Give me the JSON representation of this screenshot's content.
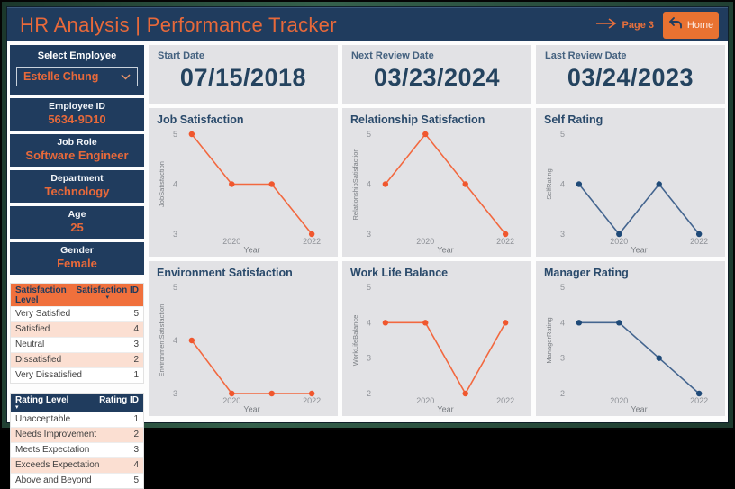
{
  "header": {
    "title": "HR Analysis | Performance Tracker",
    "page_label": "Page 3",
    "home_label": "Home"
  },
  "icons": {
    "page_arrow_icon": "→",
    "home_icon": "↶",
    "chevron_down_icon": "⌄",
    "sort_desc_icon": "▾"
  },
  "sidebar": {
    "select_employee": {
      "label": "Select Employee",
      "value": "Estelle Chung"
    },
    "info_cards": [
      {
        "label": "Employee ID",
        "value": "5634-9D10"
      },
      {
        "label": "Job Role",
        "value": "Software Engineer"
      },
      {
        "label": "Department",
        "value": "Technology"
      },
      {
        "label": "Age",
        "value": "25"
      },
      {
        "label": "Gender",
        "value": "Female"
      }
    ],
    "satisfaction_table": {
      "columns": [
        "Satisfaction Level",
        "Satisfaction ID"
      ],
      "rows": [
        [
          "Very Satisfied",
          "5"
        ],
        [
          "Satisfied",
          "4"
        ],
        [
          "Neutral",
          "3"
        ],
        [
          "Dissatisfied",
          "2"
        ],
        [
          "Very Dissatisfied",
          "1"
        ]
      ]
    },
    "rating_table": {
      "columns": [
        "Rating Level",
        "Rating ID"
      ],
      "rows": [
        [
          "Unacceptable",
          "1"
        ],
        [
          "Needs Improvement",
          "2"
        ],
        [
          "Meets Expectation",
          "3"
        ],
        [
          "Exceeds Expectation",
          "4"
        ],
        [
          "Above and Beyond",
          "5"
        ]
      ]
    }
  },
  "kpi_cards": [
    {
      "label": "Start Date",
      "value": "07/15/2018"
    },
    {
      "label": "Next Review Date",
      "value": "03/23/2024"
    },
    {
      "label": "Last Review Date",
      "value": "03/24/2023"
    }
  ],
  "chart_data": [
    {
      "type": "line",
      "title": "Job Satisfaction",
      "xlabel": "Year",
      "ylabel": "JobSatisfaction",
      "x": [
        2019,
        2020,
        2021,
        2022
      ],
      "values": [
        5,
        4,
        4,
        3
      ],
      "yticks": [
        5,
        4,
        3
      ],
      "xticks": [
        2020,
        2022
      ],
      "ylim": [
        3,
        5
      ],
      "line_color": "#F2683F",
      "dot_color": "#F0572E",
      "grid": false,
      "legend": false
    },
    {
      "type": "line",
      "title": "Relationship Satisfaction",
      "xlabel": "Year",
      "ylabel": "RelationshipSatisfaction",
      "x": [
        2019,
        2020,
        2021,
        2022
      ],
      "values": [
        4,
        5,
        4,
        3
      ],
      "yticks": [
        5,
        4,
        3
      ],
      "xticks": [
        2020,
        2022
      ],
      "ylim": [
        3,
        5
      ],
      "line_color": "#F2683F",
      "dot_color": "#F0572E",
      "grid": false,
      "legend": false
    },
    {
      "type": "line",
      "title": "Self Rating",
      "xlabel": "Year",
      "ylabel": "SelfRating",
      "x": [
        2019,
        2020,
        2021,
        2022
      ],
      "values": [
        4,
        3,
        4,
        3
      ],
      "yticks": [
        5,
        4,
        3
      ],
      "xticks": [
        2020,
        2022
      ],
      "ylim": [
        3,
        5
      ],
      "line_color": "#44658F",
      "dot_color": "#1F4A78",
      "grid": false,
      "legend": false
    },
    {
      "type": "line",
      "title": "Environment Satisfaction",
      "xlabel": "Year",
      "ylabel": "EnvironmentSatisfaction",
      "x": [
        2019,
        2020,
        2021,
        2022
      ],
      "values": [
        4,
        3,
        3,
        3
      ],
      "yticks": [
        5,
        4,
        3
      ],
      "xticks": [
        2020,
        2022
      ],
      "ylim": [
        3,
        5
      ],
      "line_color": "#F2683F",
      "dot_color": "#F0572E",
      "grid": false,
      "legend": false
    },
    {
      "type": "line",
      "title": "Work Life Balance",
      "xlabel": "Year",
      "ylabel": "WorkLifeBalance",
      "x": [
        2019,
        2020,
        2021,
        2022
      ],
      "values": [
        4,
        4,
        2,
        4
      ],
      "yticks": [
        5,
        4,
        3,
        2
      ],
      "xticks": [
        2020,
        2022
      ],
      "ylim": [
        2,
        5
      ],
      "line_color": "#F2683F",
      "dot_color": "#F0572E",
      "grid": false,
      "legend": false
    },
    {
      "type": "line",
      "title": "Manager Rating",
      "xlabel": "Year",
      "ylabel": "ManagerRating",
      "x": [
        2019,
        2020,
        2021,
        2022
      ],
      "values": [
        4,
        4,
        3,
        2
      ],
      "yticks": [
        5,
        4,
        3,
        2
      ],
      "xticks": [
        2020,
        2022
      ],
      "ylim": [
        2,
        5
      ],
      "line_color": "#44658F",
      "dot_color": "#1F4A78",
      "grid": false,
      "legend": false
    }
  ],
  "colors": {
    "accent_orange": "#E8703C",
    "button_orange": "#E97231",
    "navy": "#203C5E",
    "panel_gray": "#E2E2E5",
    "peach_row": "#FBDFD2",
    "chart_orange": "#F2683F",
    "chart_navy": "#44658F",
    "frame_green": "#2F5A47",
    "tick_gray": "#8F9298"
  }
}
